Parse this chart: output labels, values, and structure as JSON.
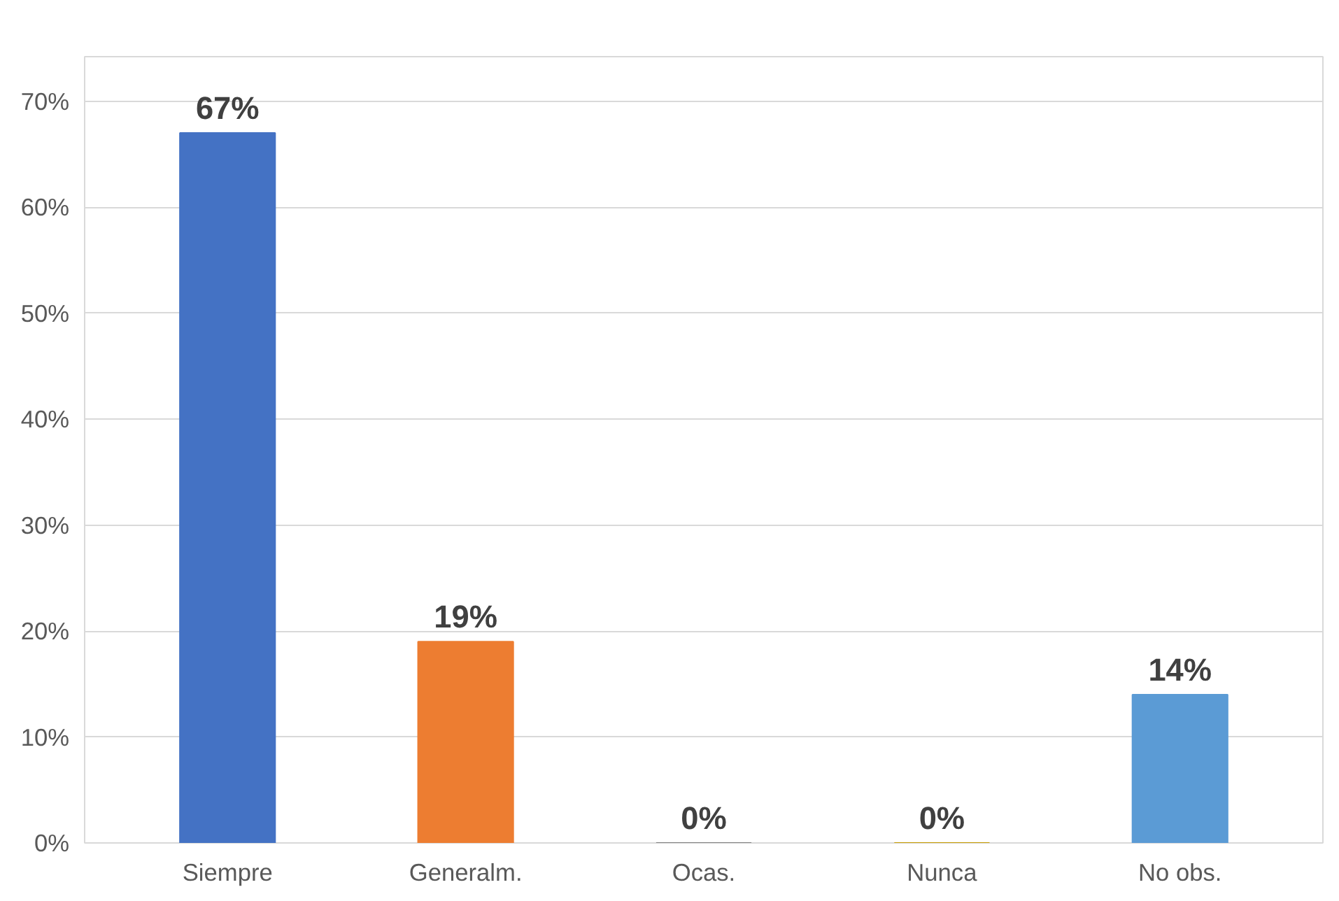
{
  "chart_data": {
    "type": "bar",
    "categories": [
      "Siempre",
      "Generalm.",
      "Ocas.",
      "Nunca",
      "No obs."
    ],
    "values": [
      67,
      19,
      0,
      0,
      14
    ],
    "colors": [
      "#4472c4",
      "#ed7d31",
      "#7f7f7f",
      "#c59b00",
      "#5b9bd5"
    ],
    "value_labels": [
      "67%",
      "19%",
      "0%",
      "0%",
      "14%"
    ],
    "ylim": [
      0,
      70
    ],
    "yticks": [
      {
        "value": 0,
        "label": "0%"
      },
      {
        "value": 10,
        "label": "10%"
      },
      {
        "value": 20,
        "label": "20%"
      },
      {
        "value": 30,
        "label": "30%"
      },
      {
        "value": 40,
        "label": "40%"
      },
      {
        "value": 50,
        "label": "50%"
      },
      {
        "value": 60,
        "label": "60%"
      },
      {
        "value": 70,
        "label": "70%"
      }
    ],
    "grid": "y"
  }
}
